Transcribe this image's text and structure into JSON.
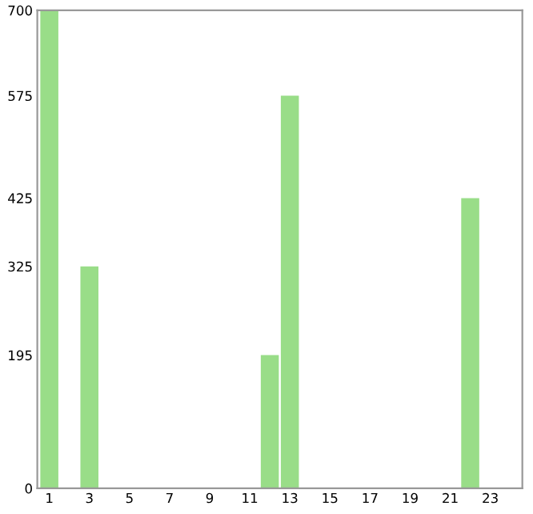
{
  "chart_data": {
    "type": "bar",
    "categories": [
      "1",
      null,
      "3",
      null,
      "5",
      null,
      "7",
      null,
      "9",
      null,
      "11",
      null,
      "13",
      null,
      "15",
      null,
      "17",
      null,
      "19",
      null,
      "21",
      null,
      "23",
      null
    ],
    "values": [
      700,
      0,
      325,
      0,
      0,
      0,
      0,
      0,
      0,
      0,
      0,
      195,
      575,
      0,
      0,
      0,
      0,
      0,
      0,
      0,
      0,
      425,
      0,
      0
    ],
    "color": "#99dd88",
    "ylim": [
      0,
      700
    ],
    "yticks": [
      0,
      195,
      325,
      425,
      575,
      700
    ],
    "grid": false
  }
}
